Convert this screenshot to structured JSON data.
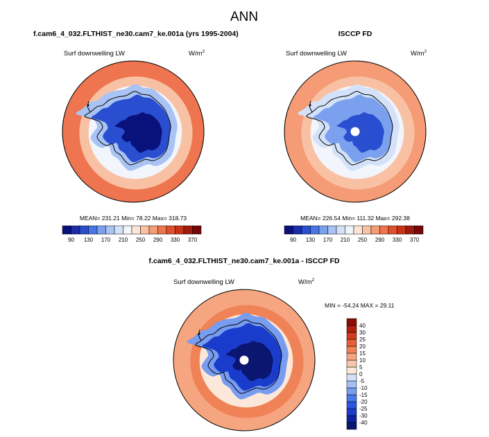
{
  "figure_title": "ANN",
  "panels": [
    {
      "id": "model",
      "title": "f.cam6_4_032.FLTHIST_ne30.cam7_ke.001a (yrs 1995-2004)",
      "variable": "Surf downwelling LW",
      "units_base": "W/m",
      "units_exp": "2",
      "stats": "MEAN= 231.21  Min=  78.22  Max= 318.73",
      "pole_dot": false
    },
    {
      "id": "obs",
      "title": "ISCCP FD",
      "variable": "Surf downwelling LW",
      "units_base": "W/m",
      "units_exp": "2",
      "stats": "MEAN= 226.54  Min= 111.32  Max= 292.38",
      "pole_dot": true
    },
    {
      "id": "diff",
      "title": "f.cam6_4_032.FLTHIST_ne30.cam7_ke.001a - ISCCP FD",
      "variable": "Surf downwelling LW",
      "units_base": "W/m",
      "units_exp": "2",
      "stats": "MIN = -54.24 MAX =  29.11",
      "pole_dot": true
    }
  ],
  "chart_data": [
    {
      "type": "heatmap",
      "projection": "south-polar-stereographic",
      "name": "model",
      "colorbar": {
        "orientation": "horizontal",
        "labels": [
          "90",
          "130",
          "170",
          "210",
          "250",
          "290",
          "330",
          "370"
        ],
        "colors": [
          "#08127a",
          "#1b2ca8",
          "#2a4ed0",
          "#4a75e4",
          "#7ba1ee",
          "#a9c3f4",
          "#d3e2f8",
          "#f2f5fb",
          "#fce4d6",
          "#f9c1a3",
          "#f59b76",
          "#ee7550",
          "#e0502f",
          "#c83319",
          "#a11b0c",
          "#7b0606"
        ],
        "min": 70,
        "max": 390,
        "step": 20
      },
      "field_levels": {
        "ocean_far": 300,
        "ocean_near": 265,
        "coast": 225,
        "ice_edge": 185,
        "plateau": 115,
        "interior": 85
      }
    },
    {
      "type": "heatmap",
      "projection": "south-polar-stereographic",
      "name": "obs",
      "colorbar": {
        "orientation": "horizontal",
        "labels": [
          "90",
          "130",
          "170",
          "210",
          "250",
          "290",
          "330",
          "370"
        ],
        "colors": [
          "#08127a",
          "#1b2ca8",
          "#2a4ed0",
          "#4a75e4",
          "#7ba1ee",
          "#a9c3f4",
          "#d3e2f8",
          "#f2f5fb",
          "#fce4d6",
          "#f9c1a3",
          "#f59b76",
          "#ee7550",
          "#e0502f",
          "#c83319",
          "#a11b0c",
          "#7b0606"
        ],
        "min": 70,
        "max": 390,
        "step": 20
      },
      "field_levels": {
        "ocean_far": 285,
        "ocean_near": 262,
        "coast": 228,
        "ice_edge": 195,
        "plateau": 150,
        "interior": 128
      }
    },
    {
      "type": "heatmap",
      "projection": "south-polar-stereographic",
      "name": "diff",
      "colorbar": {
        "orientation": "vertical",
        "labels": [
          "-40",
          "-30",
          "-25",
          "-20",
          "-15",
          "-10",
          "-5",
          "0",
          "5",
          "10",
          "15",
          "20",
          "25",
          "30",
          "40"
        ],
        "colors": [
          "#0a1670",
          "#0d22a2",
          "#1a3ccc",
          "#2a56df",
          "#4b78ea",
          "#779cf0",
          "#a4bff5",
          "#d2e0f9",
          "#fbe8da",
          "#f8c7ab",
          "#f5a57f",
          "#f08257",
          "#e75f34",
          "#d33b1d",
          "#b0200f",
          "#8a0c06"
        ]
      },
      "field_levels": {
        "ocean_far": 12,
        "ocean_near": 16,
        "coast": 3,
        "ice_edge": -12,
        "plateau": -30,
        "interior": -42
      }
    }
  ]
}
